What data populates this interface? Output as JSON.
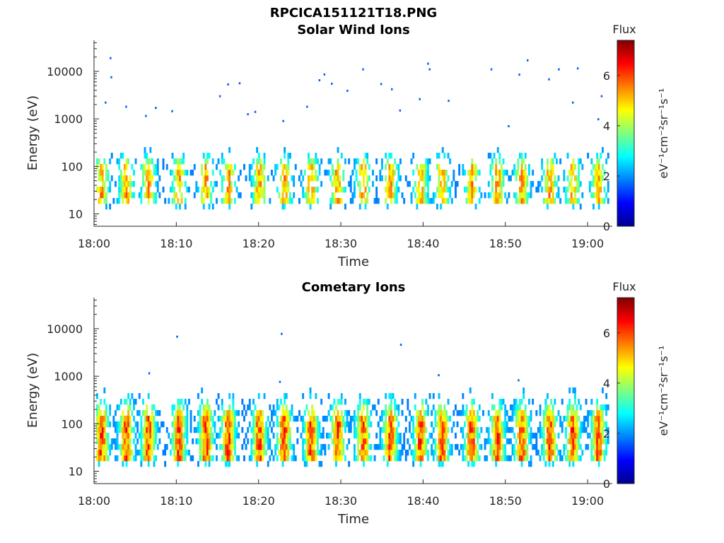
{
  "figure": {
    "title": "RPCICA151121T18.PNG",
    "colors": {
      "axis": "#262626",
      "background": "#ffffff"
    }
  },
  "chart_data": [
    {
      "type": "heatmap",
      "title": "Solar Wind Ions",
      "xlabel": "Time",
      "ylabel": "Energy (eV)",
      "yscale": "log",
      "xlim": [
        "18:00",
        "19:03"
      ],
      "ylim": [
        5.5,
        45000
      ],
      "x_ticks": [
        "18:00",
        "18:10",
        "18:20",
        "18:30",
        "18:40",
        "18:50",
        "19:00"
      ],
      "y_ticks": [
        "10",
        "100",
        "1000",
        "10000"
      ],
      "colorbar": {
        "label": "Flux",
        "units": "eV⁻¹cm⁻²sr⁻¹s⁻¹",
        "range": [
          0,
          7.4
        ],
        "ticks": [
          "0",
          "2",
          "4",
          "6"
        ],
        "colormap": "jet"
      },
      "bursts_minute": [
        0.8,
        3.8,
        6.5,
        10.2,
        13.5,
        16.2,
        20.0,
        23.0,
        26.3,
        29.5,
        32.6,
        35.9,
        39.6,
        42.2,
        45.8,
        48.9,
        51.9,
        55.3,
        58.1,
        61.2
      ],
      "energy_core_eV": [
        20,
        80
      ],
      "peak_flux": 6.0,
      "sparse_high_energy_points": [
        {
          "time_min": 2.0,
          "energy_eV": 19000
        },
        {
          "time_min": 1.4,
          "energy_eV": 2200
        },
        {
          "time_min": 2.1,
          "energy_eV": 7500
        },
        {
          "time_min": 3.9,
          "energy_eV": 1800
        },
        {
          "time_min": 6.3,
          "energy_eV": 1150
        },
        {
          "time_min": 7.5,
          "energy_eV": 1700
        },
        {
          "time_min": 9.5,
          "energy_eV": 1450
        },
        {
          "time_min": 15.3,
          "energy_eV": 3000
        },
        {
          "time_min": 16.3,
          "energy_eV": 5300
        },
        {
          "time_min": 17.7,
          "energy_eV": 5600
        },
        {
          "time_min": 18.7,
          "energy_eV": 1250
        },
        {
          "time_min": 19.6,
          "energy_eV": 1400
        },
        {
          "time_min": 23.0,
          "energy_eV": 900
        },
        {
          "time_min": 25.9,
          "energy_eV": 1800
        },
        {
          "time_min": 27.4,
          "energy_eV": 6500
        },
        {
          "time_min": 28.0,
          "energy_eV": 8600
        },
        {
          "time_min": 28.9,
          "energy_eV": 5500
        },
        {
          "time_min": 30.8,
          "energy_eV": 3900
        },
        {
          "time_min": 32.7,
          "energy_eV": 11000
        },
        {
          "time_min": 34.9,
          "energy_eV": 5400
        },
        {
          "time_min": 36.2,
          "energy_eV": 4200
        },
        {
          "time_min": 37.2,
          "energy_eV": 1500
        },
        {
          "time_min": 39.6,
          "energy_eV": 2600
        },
        {
          "time_min": 40.6,
          "energy_eV": 14500
        },
        {
          "time_min": 40.8,
          "energy_eV": 11000
        },
        {
          "time_min": 43.1,
          "energy_eV": 2400
        },
        {
          "time_min": 48.3,
          "energy_eV": 11000
        },
        {
          "time_min": 50.4,
          "energy_eV": 700
        },
        {
          "time_min": 51.7,
          "energy_eV": 8500
        },
        {
          "time_min": 52.7,
          "energy_eV": 17000
        },
        {
          "time_min": 55.3,
          "energy_eV": 6800
        },
        {
          "time_min": 56.5,
          "energy_eV": 11000
        },
        {
          "time_min": 58.2,
          "energy_eV": 2200
        },
        {
          "time_min": 58.8,
          "energy_eV": 11500
        },
        {
          "time_min": 61.7,
          "energy_eV": 3000
        },
        {
          "time_min": 61.3,
          "energy_eV": 980
        }
      ]
    },
    {
      "type": "heatmap",
      "title": "Cometary Ions",
      "xlabel": "Time",
      "ylabel": "Energy (eV)",
      "yscale": "log",
      "xlim": [
        "18:00",
        "19:03"
      ],
      "ylim": [
        5.5,
        45000
      ],
      "x_ticks": [
        "18:00",
        "18:10",
        "18:20",
        "18:30",
        "18:40",
        "18:50",
        "19:00"
      ],
      "y_ticks": [
        "10",
        "100",
        "1000",
        "10000"
      ],
      "colorbar": {
        "label": "Flux",
        "units": "eV⁻¹cm⁻²sr⁻¹s⁻¹",
        "range": [
          0,
          7.4
        ],
        "ticks": [
          "0",
          "2",
          "4",
          "6"
        ],
        "colormap": "jet"
      },
      "bursts_minute": [
        0.8,
        3.8,
        6.5,
        10.2,
        13.5,
        16.2,
        20.0,
        23.0,
        26.3,
        29.5,
        32.6,
        35.9,
        39.6,
        42.2,
        45.8,
        48.9,
        51.9,
        55.3,
        58.1,
        61.2
      ],
      "energy_core_eV": [
        20,
        100
      ],
      "peak_flux": 6.8,
      "sparse_high_energy_points": [
        {
          "time_min": 10.1,
          "energy_eV": 6800
        },
        {
          "time_min": 22.8,
          "energy_eV": 7800
        },
        {
          "time_min": 37.3,
          "energy_eV": 4600
        },
        {
          "time_min": 6.7,
          "energy_eV": 1150
        },
        {
          "time_min": 22.6,
          "energy_eV": 760
        },
        {
          "time_min": 41.9,
          "energy_eV": 1050
        },
        {
          "time_min": 51.6,
          "energy_eV": 820
        }
      ]
    }
  ]
}
